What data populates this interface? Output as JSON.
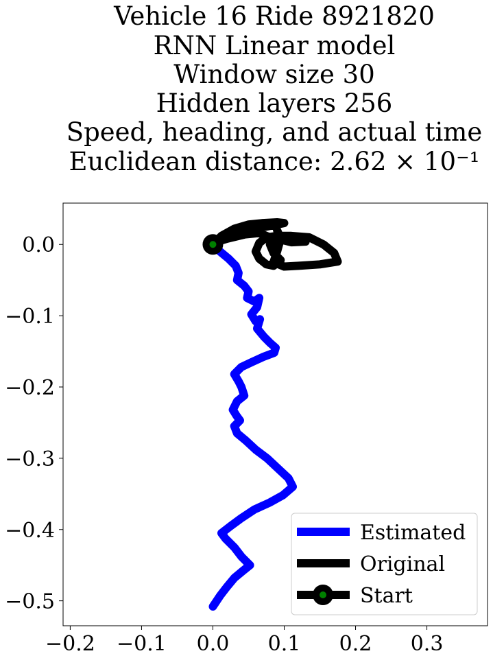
{
  "chart_data": {
    "type": "line",
    "title_lines": [
      "Vehicle 16 Ride 8921820",
      "RNN Linear model",
      "Window size 30",
      "Hidden layers 256",
      "Speed, heading, and actual time",
      "Euclidean distance: 2.62 × 10⁻¹"
    ],
    "xlabel": "",
    "ylabel": "",
    "xlim": [
      -0.21,
      0.385
    ],
    "ylim": [
      -0.535,
      0.058
    ],
    "xticks": [
      -0.2,
      -0.1,
      0.0,
      0.1,
      0.2,
      0.3
    ],
    "xtick_labels": [
      "−0.2",
      "−0.1",
      "0.0",
      "0.1",
      "0.2",
      "0.3"
    ],
    "yticks": [
      0.0,
      -0.1,
      -0.2,
      -0.3,
      -0.4,
      -0.5
    ],
    "ytick_labels": [
      "0.0",
      "−0.1",
      "−0.2",
      "−0.3",
      "−0.4",
      "−0.5"
    ],
    "grid": false,
    "legend_position": "bottom-right",
    "series": [
      {
        "name": "Estimated",
        "color": "#0000ff",
        "x": [
          0.0,
          0.01,
          0.022,
          0.032,
          0.036,
          0.034,
          0.044,
          0.05,
          0.048,
          0.058,
          0.065,
          0.062,
          0.054,
          0.06,
          0.066,
          0.062,
          0.072,
          0.08,
          0.088,
          0.086,
          0.07,
          0.055,
          0.04,
          0.03,
          0.036,
          0.04,
          0.044,
          0.034,
          0.028,
          0.033,
          0.038,
          0.03,
          0.034,
          0.046,
          0.06,
          0.076,
          0.092,
          0.106,
          0.112,
          0.098,
          0.08,
          0.058,
          0.04,
          0.025,
          0.012,
          0.018,
          0.03,
          0.04,
          0.052,
          0.042,
          0.03,
          0.02,
          0.01,
          0.0
        ],
        "y": [
          0.0,
          -0.01,
          -0.02,
          -0.03,
          -0.04,
          -0.05,
          -0.058,
          -0.066,
          -0.075,
          -0.08,
          -0.075,
          -0.088,
          -0.098,
          -0.108,
          -0.105,
          -0.118,
          -0.13,
          -0.138,
          -0.145,
          -0.152,
          -0.158,
          -0.165,
          -0.172,
          -0.182,
          -0.192,
          -0.2,
          -0.212,
          -0.22,
          -0.232,
          -0.24,
          -0.247,
          -0.255,
          -0.265,
          -0.275,
          -0.288,
          -0.3,
          -0.315,
          -0.328,
          -0.34,
          -0.352,
          -0.362,
          -0.372,
          -0.384,
          -0.395,
          -0.405,
          -0.413,
          -0.425,
          -0.438,
          -0.45,
          -0.458,
          -0.468,
          -0.48,
          -0.493,
          -0.508
        ]
      },
      {
        "name": "Original",
        "color": "#000000",
        "x": [
          0.0,
          0.012,
          0.03,
          0.05,
          0.07,
          0.09,
          0.1,
          0.085,
          0.06,
          0.03,
          0.01,
          0.0,
          0.02,
          0.045,
          0.065,
          0.075,
          0.085,
          0.1,
          0.12,
          0.13,
          0.11,
          0.09,
          0.08,
          0.085,
          0.095,
          0.085,
          0.075,
          0.065,
          0.06,
          0.065,
          0.075,
          0.09,
          0.11,
          0.135,
          0.155,
          0.17,
          0.175,
          0.15,
          0.12,
          0.1,
          0.085,
          0.09,
          0.095,
          0.09
        ],
        "y": [
          0.0,
          0.012,
          0.022,
          0.028,
          0.03,
          0.031,
          0.03,
          0.027,
          0.022,
          0.015,
          0.008,
          0.002,
          0.008,
          0.014,
          0.016,
          0.012,
          0.008,
          0.01,
          0.008,
          0.004,
          0.003,
          0.008,
          0.0,
          -0.012,
          -0.022,
          -0.03,
          -0.028,
          -0.02,
          -0.01,
          0.002,
          0.01,
          0.012,
          0.012,
          0.01,
          0.0,
          -0.012,
          -0.024,
          -0.028,
          -0.03,
          -0.031,
          -0.025,
          -0.01,
          0.008,
          0.02
        ]
      }
    ],
    "start_point": {
      "name": "Start",
      "x": 0.0,
      "y": 0.0,
      "line_color": "#000000",
      "marker_fill": "#008000"
    },
    "legend": [
      {
        "label": "Estimated",
        "color": "#0000ff",
        "marker": false
      },
      {
        "label": "Original",
        "color": "#000000",
        "marker": false
      },
      {
        "label": "Start",
        "color": "#000000",
        "marker": true
      }
    ]
  }
}
